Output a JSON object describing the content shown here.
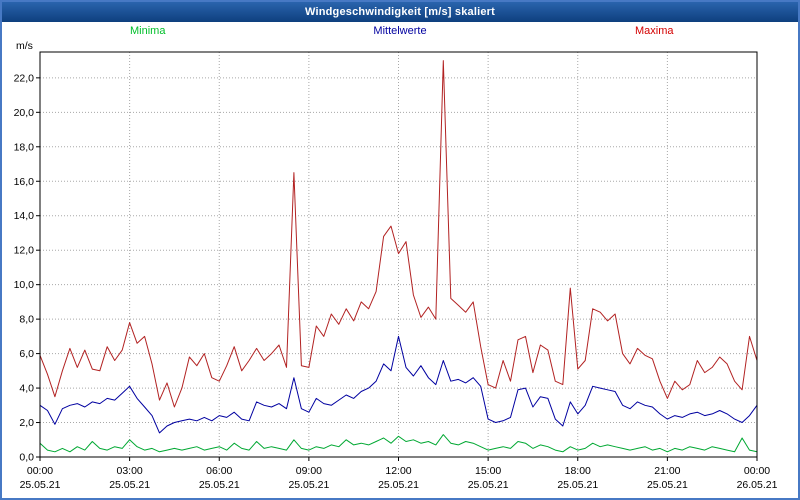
{
  "window": {
    "title": "Windgeschwindigkeit [m/s] skaliert"
  },
  "chart_data": {
    "type": "line",
    "title": "Windgeschwindigkeit [m/s] skaliert",
    "ylabel": "m/s",
    "ylim": [
      0,
      23.5
    ],
    "x_range_hours": [
      0,
      24
    ],
    "x_step_hours": 0.25,
    "grid": true,
    "legend_position": "top",
    "y_ticks": [
      {
        "v": 0,
        "label": "0,0"
      },
      {
        "v": 2,
        "label": "2,0"
      },
      {
        "v": 4,
        "label": "4,0"
      },
      {
        "v": 6,
        "label": "6,0"
      },
      {
        "v": 8,
        "label": "8,0"
      },
      {
        "v": 10,
        "label": "10,0"
      },
      {
        "v": 12,
        "label": "12,0"
      },
      {
        "v": 14,
        "label": "14,0"
      },
      {
        "v": 16,
        "label": "16,0"
      },
      {
        "v": 18,
        "label": "18,0"
      },
      {
        "v": 20,
        "label": "20,0"
      },
      {
        "v": 22,
        "label": "22,0"
      }
    ],
    "x_ticks": [
      {
        "hour": 0,
        "time": "00:00",
        "date": "25.05.21"
      },
      {
        "hour": 3,
        "time": "03:00",
        "date": "25.05.21"
      },
      {
        "hour": 6,
        "time": "06:00",
        "date": "25.05.21"
      },
      {
        "hour": 9,
        "time": "09:00",
        "date": "25.05.21"
      },
      {
        "hour": 12,
        "time": "12:00",
        "date": "25.05.21"
      },
      {
        "hour": 15,
        "time": "15:00",
        "date": "25.05.21"
      },
      {
        "hour": 18,
        "time": "18:00",
        "date": "25.05.21"
      },
      {
        "hour": 21,
        "time": "21:00",
        "date": "25.05.21"
      },
      {
        "hour": 24,
        "time": "00:00",
        "date": "26.05.21"
      }
    ],
    "series": [
      {
        "name": "Minima",
        "color": "#00a832",
        "legend_color": "#00bf2a",
        "values": [
          0.8,
          0.4,
          0.3,
          0.5,
          0.3,
          0.6,
          0.4,
          0.9,
          0.5,
          0.4,
          0.6,
          0.5,
          1.0,
          0.6,
          0.4,
          0.5,
          0.3,
          0.4,
          0.5,
          0.4,
          0.5,
          0.6,
          0.4,
          0.5,
          0.6,
          0.4,
          0.8,
          0.5,
          0.4,
          0.9,
          0.5,
          0.6,
          0.5,
          0.4,
          1.0,
          0.5,
          0.4,
          0.6,
          0.5,
          0.7,
          0.6,
          1.0,
          0.7,
          0.8,
          0.7,
          0.9,
          1.1,
          0.8,
          1.2,
          0.9,
          1.0,
          0.8,
          0.9,
          0.7,
          1.3,
          0.8,
          0.7,
          0.9,
          0.8,
          0.6,
          0.4,
          0.5,
          0.6,
          0.5,
          0.9,
          0.8,
          0.5,
          0.7,
          0.6,
          0.4,
          0.3,
          0.6,
          0.4,
          0.5,
          0.8,
          0.6,
          0.7,
          0.6,
          0.5,
          0.4,
          0.5,
          0.6,
          0.4,
          0.5,
          0.3,
          0.5,
          0.4,
          0.6,
          0.5,
          0.4,
          0.6,
          0.5,
          0.4,
          0.3,
          1.1,
          0.4,
          0.3
        ]
      },
      {
        "name": "Mittelwerte",
        "color": "#0000a0",
        "legend_color": "#0000a0",
        "values": [
          3.0,
          2.7,
          1.9,
          2.8,
          3.0,
          3.1,
          2.9,
          3.2,
          3.1,
          3.4,
          3.3,
          3.7,
          4.1,
          3.4,
          2.9,
          2.4,
          1.4,
          1.8,
          2.0,
          2.1,
          2.2,
          2.1,
          2.3,
          2.1,
          2.4,
          2.3,
          2.6,
          2.2,
          2.1,
          3.2,
          3.0,
          2.9,
          3.1,
          2.8,
          4.6,
          2.8,
          2.6,
          3.4,
          3.1,
          3.0,
          3.3,
          3.6,
          3.4,
          3.8,
          4.0,
          4.4,
          5.4,
          5.0,
          7.0,
          5.2,
          4.7,
          5.3,
          4.6,
          4.2,
          5.6,
          4.4,
          4.5,
          4.3,
          4.6,
          4.1,
          2.2,
          2.0,
          2.1,
          2.3,
          3.9,
          4.0,
          2.9,
          3.5,
          3.4,
          2.2,
          1.8,
          3.2,
          2.5,
          3.0,
          4.1,
          4.0,
          3.9,
          3.8,
          3.0,
          2.8,
          3.2,
          3.0,
          2.9,
          2.5,
          2.2,
          2.4,
          2.3,
          2.5,
          2.6,
          2.4,
          2.5,
          2.7,
          2.5,
          2.2,
          2.0,
          2.4,
          3.0
        ]
      },
      {
        "name": "Maxima",
        "color": "#b22222",
        "legend_color": "#d40000",
        "values": [
          5.9,
          4.8,
          3.5,
          5.0,
          6.3,
          5.2,
          6.2,
          5.1,
          5.0,
          6.4,
          5.6,
          6.2,
          7.8,
          6.6,
          7.0,
          5.4,
          3.3,
          4.3,
          2.9,
          4.0,
          5.8,
          5.3,
          6.0,
          4.6,
          4.4,
          5.3,
          6.4,
          5.0,
          5.6,
          6.3,
          5.6,
          6.0,
          6.5,
          5.2,
          16.5,
          5.3,
          5.2,
          7.6,
          7.0,
          8.3,
          7.7,
          8.6,
          7.9,
          9.0,
          8.6,
          9.6,
          12.8,
          13.4,
          11.8,
          12.5,
          9.4,
          8.1,
          8.7,
          8.0,
          23.0,
          9.2,
          8.8,
          8.4,
          9.0,
          6.4,
          4.2,
          4.0,
          5.6,
          4.4,
          6.8,
          7.0,
          4.9,
          6.5,
          6.2,
          4.4,
          4.2,
          9.8,
          5.1,
          5.6,
          8.6,
          8.4,
          7.9,
          8.3,
          6.0,
          5.4,
          6.3,
          5.9,
          5.7,
          4.4,
          3.4,
          4.4,
          3.9,
          4.2,
          5.6,
          4.9,
          5.2,
          5.8,
          5.4,
          4.4,
          3.9,
          7.0,
          5.6
        ]
      }
    ]
  }
}
